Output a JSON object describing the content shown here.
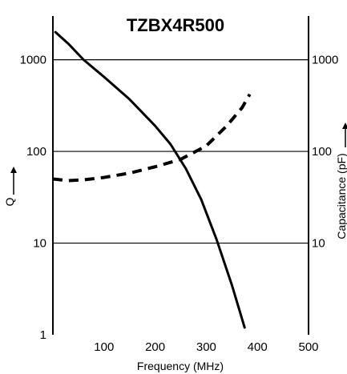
{
  "chart_data": {
    "type": "line",
    "title": "TZBX4R500",
    "xlabel": "Frequency (MHz)",
    "ylabel_left": "Q",
    "ylabel_right": "Capacitance (pF)",
    "x_ticks": [
      "100",
      "200",
      "300",
      "400",
      "500"
    ],
    "y_left_ticks": [
      "1000",
      "100",
      "10",
      "1"
    ],
    "y_right_ticks": [
      "1000",
      "100",
      "10"
    ],
    "xlim": [
      0,
      500
    ],
    "ylim": [
      1,
      3000
    ],
    "y_scale": "log",
    "grid": "horizontal",
    "series": [
      {
        "line_style": "solid",
        "color": "#000000",
        "points": [
          [
            5,
            2000
          ],
          [
            30,
            1500
          ],
          [
            60,
            1000
          ],
          [
            100,
            650
          ],
          [
            150,
            370
          ],
          [
            200,
            190
          ],
          [
            230,
            120
          ],
          [
            260,
            65
          ],
          [
            290,
            30
          ],
          [
            320,
            11
          ],
          [
            350,
            3.5
          ],
          [
            375,
            1.2
          ]
        ]
      },
      {
        "line_style": "dashed",
        "color": "#000000",
        "points": [
          [
            0,
            50
          ],
          [
            30,
            48
          ],
          [
            60,
            49
          ],
          [
            100,
            52
          ],
          [
            150,
            58
          ],
          [
            200,
            68
          ],
          [
            250,
            82
          ],
          [
            300,
            115
          ],
          [
            340,
            190
          ],
          [
            370,
            300
          ],
          [
            385,
            420
          ]
        ]
      }
    ]
  }
}
